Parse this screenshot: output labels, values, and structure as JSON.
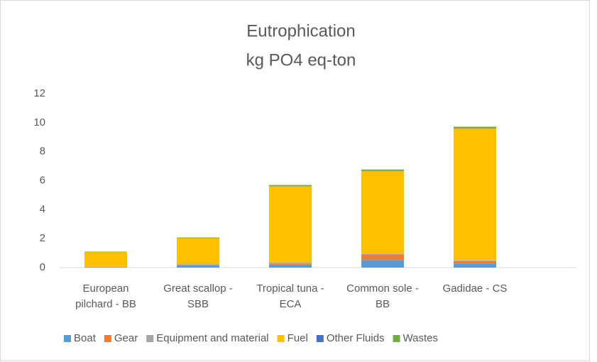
{
  "chart_data": {
    "type": "stacked_bar",
    "title": "Eutrophication",
    "subtitle": "kg PO4 eq-ton",
    "categories": [
      "European pilchard - BB",
      "Great scallop - SBB",
      "Tropical tuna - ECA",
      "Common sole - BB",
      "Gadidae - CS"
    ],
    "series": [
      {
        "name": "Boat",
        "color": "#5b9bd5",
        "values": [
          0.03,
          0.15,
          0.2,
          0.5,
          0.25
        ]
      },
      {
        "name": "Gear",
        "color": "#ed7d31",
        "values": [
          0.01,
          0.02,
          0.05,
          0.4,
          0.2
        ]
      },
      {
        "name": "Equipment and material",
        "color": "#a5a5a5",
        "values": [
          0.02,
          0.06,
          0.1,
          0.05,
          0.05
        ]
      },
      {
        "name": "Fuel",
        "color": "#ffc000",
        "values": [
          1.0,
          1.8,
          5.25,
          5.7,
          9.1
        ]
      },
      {
        "name": "Other Fluids",
        "color": "#4472c4",
        "values": [
          0,
          0,
          0.02,
          0.02,
          0.02
        ]
      },
      {
        "name": "Wastes",
        "color": "#70ad47",
        "values": [
          0.04,
          0.05,
          0.08,
          0.1,
          0.1
        ]
      }
    ],
    "ylim": [
      0,
      12
    ],
    "yticks": [
      0,
      2,
      4,
      6,
      8,
      10,
      12
    ],
    "grid": false,
    "legend": "bottom"
  }
}
